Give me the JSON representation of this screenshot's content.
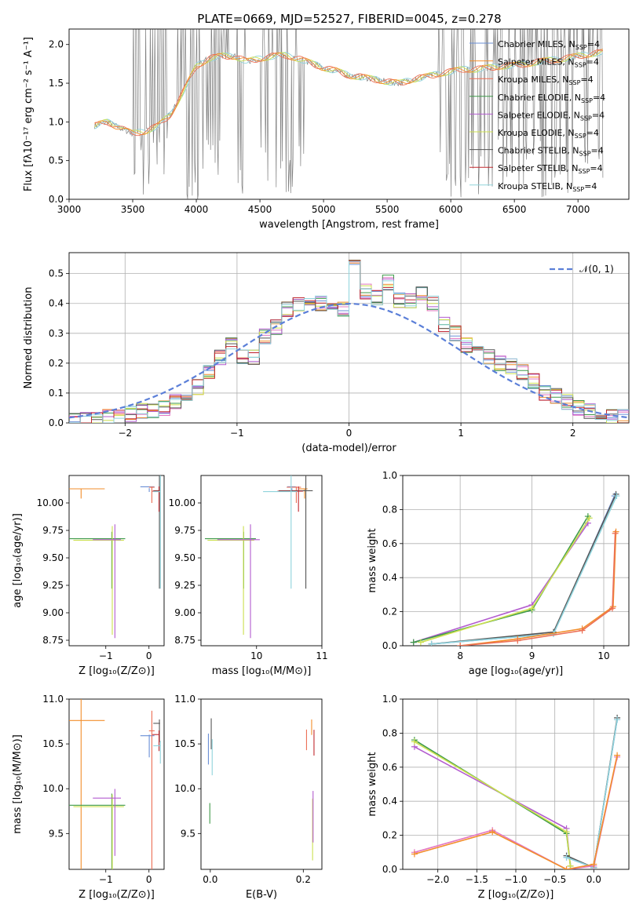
{
  "figure": {
    "title": "PLATE=0669, MJD=52527, FIBERID=0045, z=0.278"
  },
  "palette": {
    "Chabrier MILES": "#6a8fd6",
    "Salpeter MILES": "#f28e2b",
    "Kroupa MILES": "#ec6f55",
    "Chabrier ELODIE": "#3f9a4a",
    "Salpeter ELODIE": "#b35ccf",
    "Kroupa ELODIE": "#cce04f",
    "Chabrier STELIB": "#555555",
    "Salpeter STELIB": "#c0282e",
    "Kroupa STELIB": "#8fd3dc",
    "Kroupa MILES (Z)": "#e377c2",
    "data": "#808080",
    "normal": "#5b7fd8"
  },
  "chart_data": [
    {
      "id": "spectrum",
      "type": "line",
      "xlabel": "wavelength [Angstrom, rest frame]",
      "ylabel": "Flux [fλ10⁻¹⁷ erg cm⁻² s⁻¹ A⁻¹]",
      "xlim": [
        3000,
        7400
      ],
      "ylim": [
        0,
        2.2
      ],
      "xticks": [
        3000,
        3500,
        4000,
        4500,
        5000,
        5500,
        6000,
        6500,
        7000
      ],
      "yticks": [
        0.0,
        0.5,
        1.0,
        1.5,
        2.0
      ],
      "grid": false,
      "legend_position": "top-right",
      "legend": [
        {
          "name": "Chabrier MILES, N",
          "sub": "SSP",
          "tail": "=4"
        },
        {
          "name": "Salpeter MILES, N",
          "sub": "SSP",
          "tail": "=4"
        },
        {
          "name": "Kroupa MILES, N",
          "sub": "SSP",
          "tail": "=4"
        },
        {
          "name": "Chabrier ELODIE, N",
          "sub": "SSP",
          "tail": "=4"
        },
        {
          "name": "Salpeter ELODIE, N",
          "sub": "SSP",
          "tail": "=4"
        },
        {
          "name": "Kroupa ELODIE, N",
          "sub": "SSP",
          "tail": "=4"
        },
        {
          "name": "Chabrier STELIB, N",
          "sub": "SSP",
          "tail": "=4"
        },
        {
          "name": "Salpeter STELIB, N",
          "sub": "SSP",
          "tail": "=4"
        },
        {
          "name": "Kroupa STELIB, N",
          "sub": "SSP",
          "tail": "=4"
        }
      ],
      "continuum": {
        "x": [
          3200,
          3300,
          3400,
          3500,
          3600,
          3700,
          3800,
          3900,
          4000,
          4100,
          4200,
          4300,
          4400,
          4500,
          4600,
          4700,
          4800,
          4900,
          5000,
          5100,
          5200,
          5300,
          5400,
          5500,
          5600,
          5700,
          5800,
          5900,
          6000,
          6100,
          6200,
          6300,
          6400,
          6500,
          6600,
          6700,
          6800,
          6900,
          7000,
          7100,
          7200
        ],
        "y": [
          0.95,
          1.0,
          0.92,
          0.85,
          0.88,
          0.95,
          1.1,
          1.4,
          1.72,
          1.82,
          1.85,
          1.85,
          1.78,
          1.82,
          1.85,
          1.86,
          1.82,
          1.76,
          1.7,
          1.66,
          1.6,
          1.58,
          1.55,
          1.52,
          1.5,
          1.55,
          1.58,
          1.62,
          1.65,
          1.68,
          1.68,
          1.7,
          1.72,
          1.73,
          1.75,
          1.78,
          1.8,
          1.82,
          1.85,
          1.88,
          1.9
        ]
      }
    },
    {
      "id": "residuals",
      "type": "line",
      "xlabel": "(data-model)/error",
      "ylabel": "Normed distribution",
      "xlim": [
        -2.5,
        2.5
      ],
      "ylim": [
        0,
        0.57
      ],
      "xticks": [
        -2,
        -1,
        0,
        1,
        2
      ],
      "yticks": [
        0.0,
        0.1,
        0.2,
        0.3,
        0.4,
        0.5
      ],
      "grid": true,
      "legend": [
        {
          "name": "𝒩(0, 1)"
        }
      ],
      "legend_position": "top-right",
      "histogram": {
        "bin_edges": [
          -2.5,
          -2.4,
          -2.3,
          -2.2,
          -2.1,
          -2.0,
          -1.9,
          -1.8,
          -1.7,
          -1.6,
          -1.5,
          -1.4,
          -1.3,
          -1.2,
          -1.1,
          -1.0,
          -0.9,
          -0.8,
          -0.7,
          -0.6,
          -0.5,
          -0.4,
          -0.3,
          -0.2,
          -0.1,
          0.0,
          0.1,
          0.2,
          0.3,
          0.4,
          0.5,
          0.6,
          0.7,
          0.8,
          0.9,
          1.0,
          1.1,
          1.2,
          1.3,
          1.4,
          1.5,
          1.6,
          1.7,
          1.8,
          1.9,
          2.0,
          2.1,
          2.2,
          2.3,
          2.4,
          2.5
        ],
        "values": [
          0.01,
          0.01,
          0.01,
          0.02,
          0.02,
          0.03,
          0.04,
          0.04,
          0.05,
          0.07,
          0.1,
          0.12,
          0.17,
          0.22,
          0.26,
          0.22,
          0.22,
          0.29,
          0.32,
          0.38,
          0.4,
          0.42,
          0.4,
          0.39,
          0.38,
          0.52,
          0.44,
          0.42,
          0.47,
          0.41,
          0.41,
          0.43,
          0.4,
          0.33,
          0.3,
          0.26,
          0.24,
          0.22,
          0.2,
          0.19,
          0.17,
          0.14,
          0.1,
          0.09,
          0.07,
          0.05,
          0.04,
          0.03,
          0.02,
          0.02
        ]
      }
    },
    {
      "id": "age-vs-Z",
      "type": "scatter",
      "xlabel": "Z [log₁₀(Z/Z⊙)]",
      "ylabel": "age  [log₁₀(age/yr)]",
      "xlim": [
        -1.85,
        0.35
      ],
      "ylim": [
        8.7,
        10.25
      ],
      "xticks": [
        -1,
        0
      ],
      "yticks": [
        8.75,
        9.0,
        9.25,
        9.5,
        9.75,
        10.0
      ],
      "grid": false
    },
    {
      "id": "age-vs-mass",
      "type": "scatter",
      "xlabel": "mass [log₁₀(M/M⊙)]",
      "ylabel": "",
      "xlim": [
        9.15,
        11.0
      ],
      "ylim": [
        8.7,
        10.25
      ],
      "xticks": [
        10,
        11
      ],
      "yticks": [
        8.75,
        9.0,
        9.25,
        9.5,
        9.75,
        10.0
      ],
      "grid": false
    },
    {
      "id": "weight-vs-age",
      "type": "line",
      "xlabel": "age  [log₁₀(age/yr)]",
      "ylabel": "mass weight",
      "xlim": [
        7.2,
        10.35
      ],
      "ylim": [
        0,
        1.0
      ],
      "xticks": [
        8,
        9,
        10
      ],
      "yticks": [
        0.0,
        0.2,
        0.4,
        0.6,
        0.8,
        1.0
      ],
      "grid": true,
      "series": [
        {
          "key": "Salpeter ELODIE",
          "x": [
            7.35,
            9.0,
            9.78
          ],
          "y": [
            0.02,
            0.24,
            0.72
          ]
        },
        {
          "key": "Chabrier ELODIE",
          "x": [
            7.35,
            9.0,
            9.78
          ],
          "y": [
            0.02,
            0.21,
            0.76
          ]
        },
        {
          "key": "Kroupa ELODIE",
          "x": [
            7.45,
            9.0,
            9.8
          ],
          "y": [
            0.02,
            0.22,
            0.75
          ]
        },
        {
          "key": "Chabrier MILES",
          "x": [
            7.6,
            9.3,
            10.15
          ],
          "y": [
            0.01,
            0.07,
            0.88
          ]
        },
        {
          "key": "Chabrier STELIB",
          "x": [
            7.6,
            9.3,
            10.17
          ],
          "y": [
            0.01,
            0.08,
            0.89
          ]
        },
        {
          "key": "Kroupa STELIB",
          "x": [
            7.6,
            9.3,
            10.18
          ],
          "y": [
            0.01,
            0.07,
            0.88
          ]
        },
        {
          "key": "Salpeter MILES",
          "x": [
            8.0,
            8.8,
            9.7,
            10.13,
            10.17
          ],
          "y": [
            0.0,
            0.04,
            0.1,
            0.23,
            0.67
          ]
        },
        {
          "key": "Kroupa MILES",
          "x": [
            8.0,
            8.8,
            9.7,
            10.12,
            10.16
          ],
          "y": [
            0.0,
            0.03,
            0.09,
            0.22,
            0.66
          ]
        }
      ]
    },
    {
      "id": "mass-vs-Z",
      "type": "scatter",
      "xlabel": "Z [log₁₀(Z/Z⊙)]",
      "ylabel": "mass [log₁₀(M/M⊙)]",
      "xlim": [
        -1.85,
        0.35
      ],
      "ylim": [
        9.1,
        11.0
      ],
      "xticks": [
        -1,
        0
      ],
      "yticks": [
        9.5,
        10.0,
        10.5,
        11.0
      ],
      "grid": false
    },
    {
      "id": "mass-vs-EBV",
      "type": "scatter",
      "xlabel": "E(B-V)",
      "ylabel": "",
      "xlim": [
        -0.02,
        0.24
      ],
      "ylim": [
        9.1,
        11.0
      ],
      "xticks": [
        0.0,
        0.2
      ],
      "yticks": [
        9.5,
        10.0,
        10.5,
        11.0
      ],
      "grid": false
    },
    {
      "id": "weight-vs-Z",
      "type": "line",
      "xlabel": "Z [log₁₀(Z/Z⊙)]",
      "ylabel": "mass weight",
      "xlim": [
        -2.45,
        0.45
      ],
      "ylim": [
        0,
        1.0
      ],
      "xticks": [
        -2.0,
        -1.5,
        -1.0,
        -0.5,
        0.0
      ],
      "yticks": [
        0.0,
        0.2,
        0.4,
        0.6,
        0.8,
        1.0
      ],
      "grid": true,
      "series": [
        {
          "key": "Salpeter ELODIE",
          "x": [
            -2.3,
            -0.35,
            -0.3
          ],
          "y": [
            0.72,
            0.24,
            0.02
          ]
        },
        {
          "key": "Chabrier ELODIE",
          "x": [
            -2.3,
            -0.35,
            -0.3
          ],
          "y": [
            0.76,
            0.21,
            0.02
          ]
        },
        {
          "key": "Kroupa ELODIE",
          "x": [
            -2.3,
            -0.35,
            -0.3
          ],
          "y": [
            0.75,
            0.22,
            0.02
          ]
        },
        {
          "key": "Chabrier MILES",
          "x": [
            -0.35,
            0.0,
            0.3
          ],
          "y": [
            0.07,
            0.01,
            0.88
          ]
        },
        {
          "key": "Chabrier STELIB",
          "x": [
            -0.35,
            0.0,
            0.3
          ],
          "y": [
            0.08,
            0.01,
            0.89
          ]
        },
        {
          "key": "Kroupa STELIB",
          "x": [
            -0.35,
            0.0,
            0.3
          ],
          "y": [
            0.07,
            0.01,
            0.88
          ]
        },
        {
          "key": "Kroupa MILES (Z)",
          "x": [
            -2.3,
            -1.3,
            -0.35,
            0.0,
            0.3
          ],
          "y": [
            0.1,
            0.23,
            0.0,
            0.02,
            0.66
          ]
        },
        {
          "key": "Salpeter MILES",
          "x": [
            -2.3,
            -1.3,
            -0.35,
            0.0,
            0.3
          ],
          "y": [
            0.09,
            0.22,
            0.0,
            0.03,
            0.67
          ]
        }
      ]
    }
  ],
  "models": [
    {
      "key": "Chabrier MILES",
      "age": 10.13,
      "age_err": 0.03,
      "Z": 0.05,
      "Z_err": 0.25,
      "mass": 10.57,
      "mass_err": 0.1,
      "mass_z_err": 0.22,
      "ebv": 0.0,
      "ebv_err": 0.3
    },
    {
      "key": "Kroupa MILES",
      "age": 10.13,
      "age_err": 0.13,
      "Z": 0.1,
      "Z_err": 0.1,
      "mass": 10.63,
      "mass_err": 0.17,
      "mass_z_err": 1.6,
      "ebv": 0.21,
      "ebv_err": 0.2
    },
    {
      "key": "Salpeter MILES",
      "age": 10.12,
      "age_err": 0.08,
      "Z": -1.55,
      "Z_err": 1.75,
      "mass": 10.75,
      "mass_err": 0.1,
      "mass_z_err": 1.8,
      "ebv": 0.22,
      "ebv_err": 0.15
    },
    {
      "key": "Chabrier ELODIE",
      "age": 9.67,
      "age_err": 0.45,
      "Z": -0.85,
      "Z_err": 1.0,
      "mass": 9.81,
      "mass_err": 0.6,
      "mass_z_err": 0.9,
      "ebv": 0.0,
      "ebv_err": 0.2
    },
    {
      "key": "Kroupa ELODIE",
      "age": 9.66,
      "age_err": 0.86,
      "Z": -0.85,
      "Z_err": 0.9,
      "mass": 9.8,
      "mass_err": 0.55,
      "mass_z_err": 0.9,
      "ebv": 0.22,
      "ebv_err": 0.6
    },
    {
      "key": "Salpeter ELODIE",
      "age": 9.67,
      "age_err": 0.9,
      "Z": -0.8,
      "Z_err": 0.5,
      "mass": 9.9,
      "mass_err": 0.5,
      "mass_z_err": 0.65,
      "ebv": 0.22,
      "ebv_err": 0.5
    },
    {
      "key": "Chabrier STELIB",
      "age": 10.12,
      "age_err": 0.9,
      "Z": 0.22,
      "Z_err": 0.12,
      "mass": 10.74,
      "mass_err": 0.4,
      "mass_z_err": 0.22,
      "ebv": 0.0,
      "ebv_err": 0.3
    },
    {
      "key": "Salpeter STELIB",
      "age": 10.12,
      "age_err": 0.2,
      "Z": 0.2,
      "Z_err": 0.12,
      "mass": 10.62,
      "mass_err": 0.3,
      "mass_z_err": 0.2,
      "ebv": 0.22,
      "ebv_err": 0.25
    },
    {
      "key": "Kroupa STELIB",
      "age": 10.12,
      "age_err": 0.9,
      "Z": 0.22,
      "Z_err": 0.12,
      "mass": 10.5,
      "mass_err": 0.4,
      "mass_z_err": 0.22,
      "ebv": 0.0,
      "ebv_err": 0.35
    }
  ]
}
